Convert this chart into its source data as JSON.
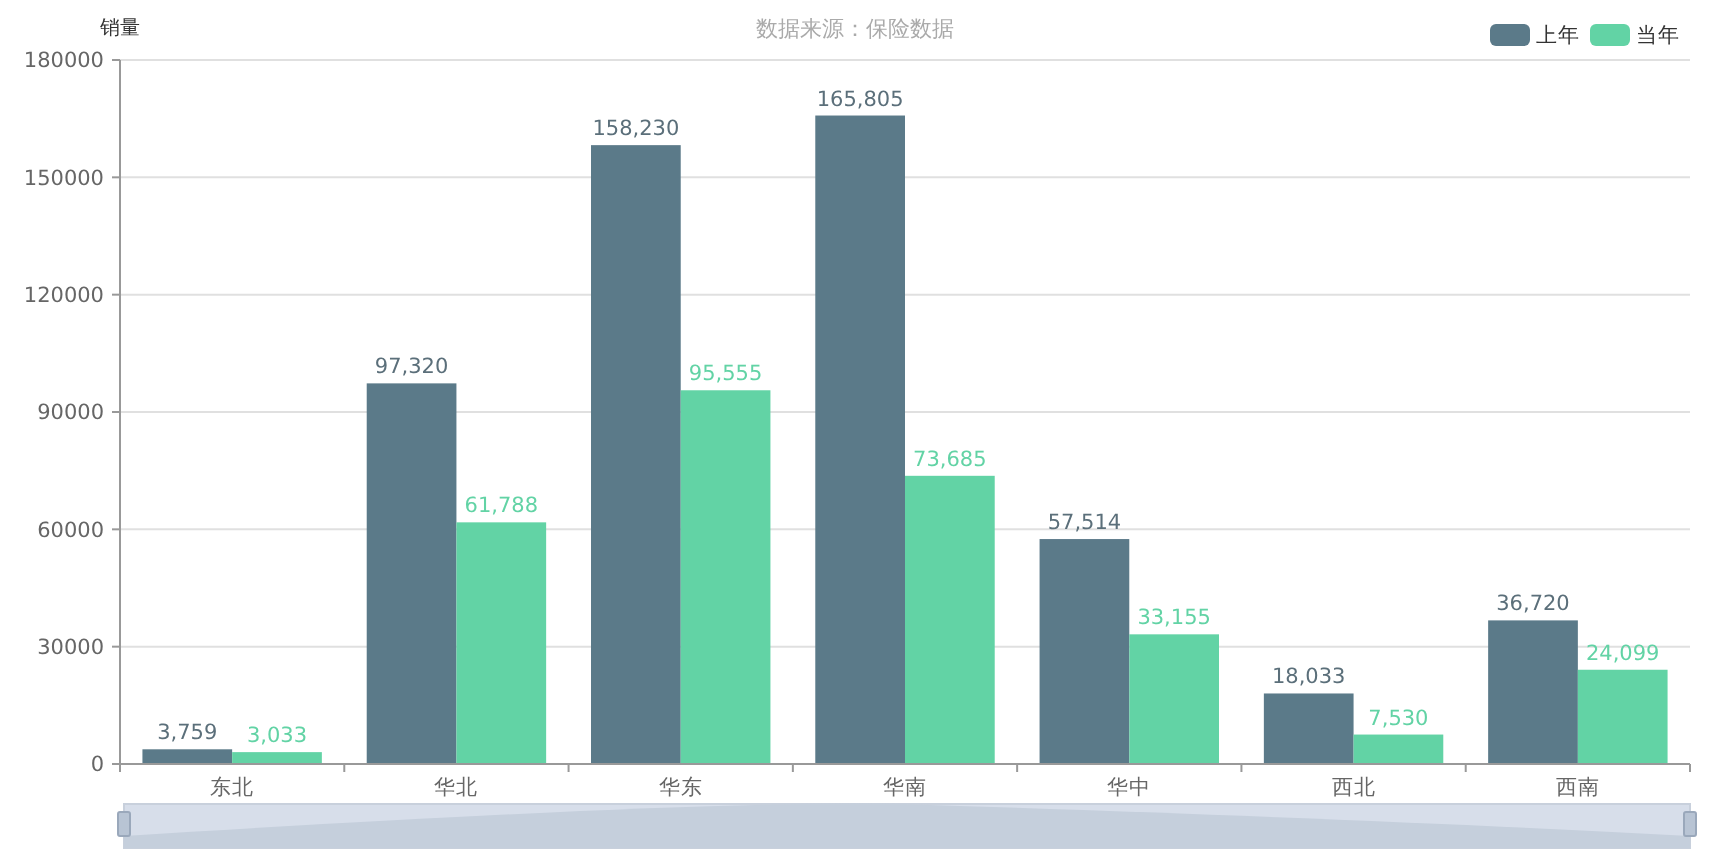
{
  "chart_data": {
    "type": "bar",
    "subtitle": "数据来源：保险数据",
    "ylabel": "销量",
    "categories": [
      "东北",
      "华北",
      "华东",
      "华南",
      "华中",
      "西北",
      "西南"
    ],
    "series": [
      {
        "name": "上年",
        "color": "#5b7a89",
        "values": [
          3759,
          97320,
          158230,
          165805,
          57514,
          18033,
          36720
        ],
        "value_labels": [
          "3,759",
          "97,320",
          "158,230",
          "165,805",
          "57,514",
          "18,033",
          "36,720"
        ]
      },
      {
        "name": "当年",
        "color": "#62d3a5",
        "values": [
          3033,
          61788,
          95555,
          73685,
          33155,
          7530,
          24099
        ],
        "value_labels": [
          "3,033",
          "61,788",
          "95,555",
          "73,685",
          "33,155",
          "7,530",
          "24,099"
        ]
      }
    ],
    "ylim": [
      0,
      180000
    ],
    "yticks": [
      0,
      30000,
      60000,
      90000,
      120000,
      150000,
      180000
    ],
    "grid": "y",
    "legend": "top right"
  }
}
